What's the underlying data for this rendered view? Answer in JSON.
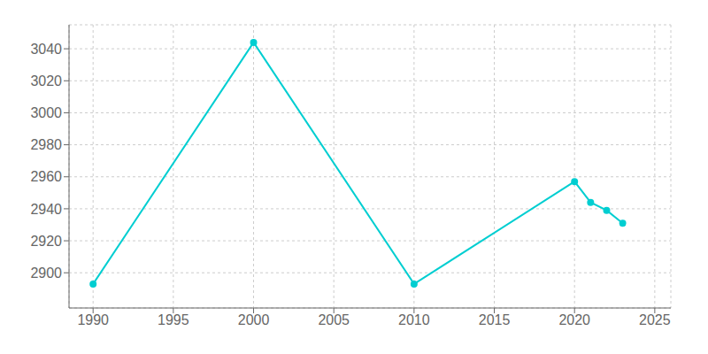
{
  "chart_data": {
    "type": "line",
    "x": [
      1990,
      2000,
      2010,
      2020,
      2021,
      2022,
      2023
    ],
    "values": [
      2893,
      3044,
      2893,
      2957,
      2944,
      2939,
      2931
    ],
    "color": "#00CED1",
    "marker": "circle",
    "xlim": [
      1988.5,
      2026
    ],
    "ylim": [
      2878,
      3055
    ],
    "xticks": [
      1990,
      1995,
      2000,
      2005,
      2010,
      2015,
      2020,
      2025
    ],
    "yticks": [
      2900,
      2920,
      2940,
      2960,
      2980,
      3000,
      3020,
      3040
    ],
    "grid": true
  }
}
